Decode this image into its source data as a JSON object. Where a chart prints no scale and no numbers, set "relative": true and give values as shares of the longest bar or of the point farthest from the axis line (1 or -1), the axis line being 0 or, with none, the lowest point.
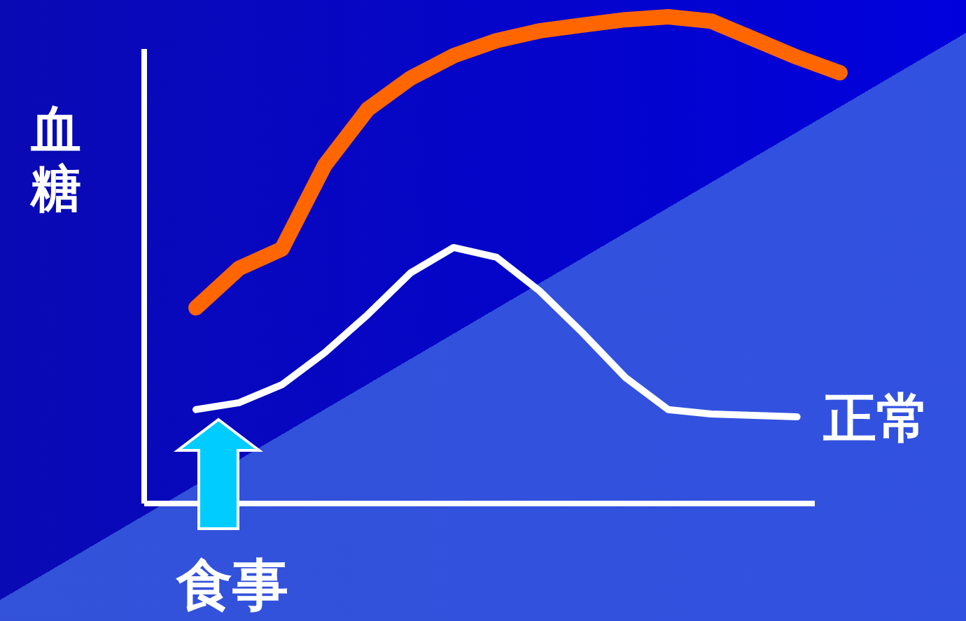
{
  "chart_data": {
    "type": "line",
    "relative": true,
    "ylabel": "血糖",
    "annotations": [
      "食事"
    ],
    "categories": [
      null,
      null,
      null,
      null,
      null,
      null,
      null,
      null,
      null,
      null,
      null,
      null,
      null,
      null,
      null,
      null
    ],
    "series": [
      {
        "color": "#ff6600",
        "values": [
          0.402,
          0.483,
          0.523,
          0.695,
          0.81,
          0.874,
          0.92,
          0.951,
          0.971,
          0.983,
          0.994,
          1.0,
          0.991,
          0.954,
          0.917,
          0.885
        ]
      },
      {
        "name": "正常",
        "color": "#ffffff",
        "values": [
          0.193,
          0.207,
          0.244,
          0.31,
          0.388,
          0.474,
          0.526,
          0.506,
          0.437,
          0.351,
          0.259,
          0.193,
          0.184,
          0.181,
          0.178,
          null
        ]
      }
    ],
    "legend": "right"
  }
}
